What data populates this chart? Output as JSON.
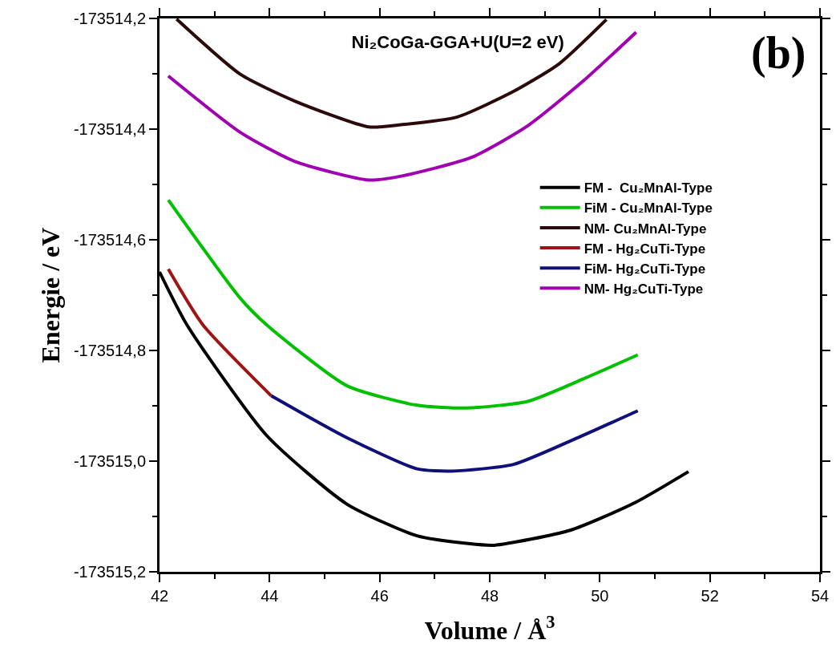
{
  "chart_data": {
    "type": "line",
    "title": "Ni₂CoGa-GGA+U(U=2 eV)",
    "xlabel": "Volume / Å$^{3}$",
    "ylabel": "Energie / eV",
    "annotations": [
      "(b)"
    ],
    "xlim": [
      42,
      54
    ],
    "xticks": [
      42,
      44,
      46,
      48,
      50,
      52,
      54
    ],
    "ylim": [
      -173515.2,
      -173514.2
    ],
    "yticks": [
      {
        "value": -173515.2,
        "label": "-173515,2"
      },
      {
        "value": -173515.0,
        "label": "-173515,0"
      },
      {
        "value": -173514.8,
        "label": "-173514,8"
      },
      {
        "value": -173514.6,
        "label": "-173514,6"
      },
      {
        "value": -173514.4,
        "label": "-173514,4"
      },
      {
        "value": -173514.2,
        "label": "-173514,2"
      }
    ],
    "grid": false,
    "legend": "right",
    "marker": "none",
    "line_style": "solid",
    "series": [
      {
        "name": "FM -  Cu₂MnAl-Type",
        "color": "#000000",
        "x": [
          42.0,
          42.5,
          43.95,
          45.41,
          46.68,
          47.61,
          48.08,
          49.46,
          50.64,
          51.61
        ],
        "values": [
          -173514.658,
          -173514.754,
          -173514.954,
          -173515.078,
          -173515.135,
          -173515.149,
          -173515.152,
          -173515.125,
          -173515.075,
          -173515.019
        ]
      },
      {
        "name": "FiM - Cu₂MnAl-Type",
        "color": "#00c000",
        "x": [
          42.16,
          43.47,
          43.95,
          45.41,
          46.68,
          47.57,
          48.69,
          49.71,
          50.69
        ],
        "values": [
          -173514.528,
          -173514.706,
          -173514.754,
          -173514.864,
          -173514.899,
          -173514.904,
          -173514.892,
          -173514.851,
          -173514.808
        ]
      },
      {
        "name": "NM- Cu₂MnAl-Type",
        "color": "#2b0a0a",
        "x": [
          42.31,
          43.47,
          44.45,
          45.8,
          46.39,
          47.41,
          48.43,
          49.26,
          50.12
        ],
        "values": [
          -173514.201,
          -173514.301,
          -173514.349,
          -173514.396,
          -173514.392,
          -173514.378,
          -173514.332,
          -173514.282,
          -173514.202
        ]
      },
      {
        "name": "FM - Hg₂CuTi-Type",
        "color": "#9e1414",
        "x": [
          42.16,
          42.79,
          44.03
        ],
        "values": [
          -173514.653,
          -173514.754,
          -173514.882
        ]
      },
      {
        "name": "FiM- Hg₂CuTi-Type",
        "color": "#10107a",
        "x": [
          44.03,
          45.41,
          46.68,
          47.31,
          48.43,
          49.57,
          50.69
        ],
        "values": [
          -173514.882,
          -173514.958,
          -173515.014,
          -173515.018,
          -173515.006,
          -173514.959,
          -173514.909
        ]
      },
      {
        "name": "NM- Hg₂CuTi-Type",
        "color": "#a000b0",
        "x": [
          42.16,
          43.47,
          44.45,
          45.8,
          46.39,
          47.67,
          48.69,
          49.71,
          50.66
        ],
        "values": [
          -173514.304,
          -173514.406,
          -173514.458,
          -173514.492,
          -173514.485,
          -173514.451,
          -173514.394,
          -173514.312,
          -173514.225
        ]
      }
    ]
  }
}
